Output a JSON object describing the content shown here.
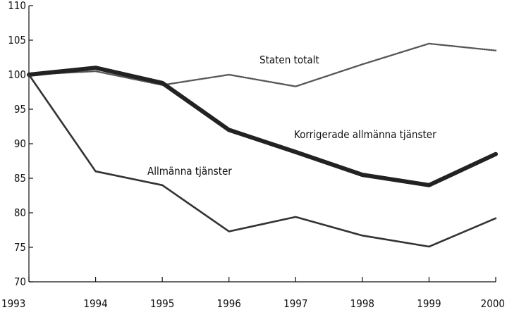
{
  "chart_data": {
    "type": "line",
    "title": "",
    "xlabel": "",
    "ylabel": "",
    "x": [
      "1993",
      "1994",
      "1995",
      "1996",
      "1997",
      "1998",
      "1999",
      "2000"
    ],
    "ylim": [
      70,
      110
    ],
    "yticks": [
      "70",
      "75",
      "80",
      "85",
      "90",
      "95",
      "100",
      "105",
      "110"
    ],
    "grid": false,
    "legend": "inline labels",
    "series": [
      {
        "name": "Staten totalt",
        "values": [
          100,
          100.5,
          98.5,
          100,
          98.3,
          101.5,
          104.5,
          103.5
        ],
        "style": "dotted",
        "color": "#555555"
      },
      {
        "name": "Korrigerade allmänna tjänster",
        "values": [
          100,
          101,
          98.8,
          92,
          88.8,
          85.5,
          84,
          88.5
        ],
        "style": "thick",
        "color": "#222222"
      },
      {
        "name": "Allmänna tjänster",
        "values": [
          100,
          86,
          84,
          77.3,
          79.4,
          76.7,
          75.1,
          79.2
        ],
        "style": "solid",
        "color": "#333333"
      }
    ]
  }
}
